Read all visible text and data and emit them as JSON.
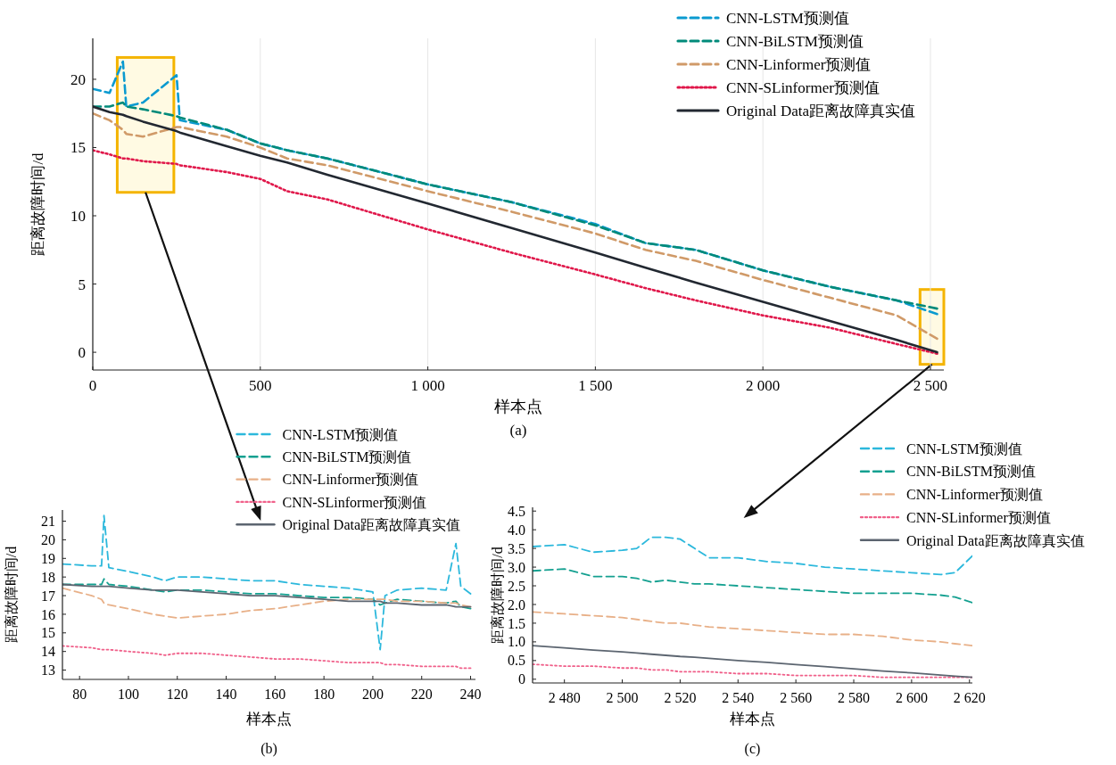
{
  "chart_data": [
    {
      "type": "line",
      "xlabel": "样本点",
      "ylabel": "距离故障时间/d",
      "annotations": [
        "(a)"
      ],
      "xlim": [
        0,
        2540
      ],
      "ylim": [
        -1.3,
        23
      ],
      "xticks": [
        0,
        500,
        {
          "value": 1000,
          "label": "1 000"
        },
        {
          "value": 1500,
          "label": "1 500"
        },
        {
          "value": 2000,
          "label": "2 000"
        },
        {
          "value": 2500,
          "label": "2 500"
        }
      ],
      "yticks": [
        0,
        5,
        10,
        15,
        20
      ],
      "grid": "x",
      "legend": "top right",
      "x": [
        0,
        50,
        90,
        100,
        150,
        250,
        260,
        400,
        500,
        580,
        700,
        1000,
        1250,
        1500,
        1650,
        1800,
        2000,
        2200,
        2400,
        2520
      ],
      "series": [
        {
          "name": "CNN-LSTM预测值",
          "color": "#0a9ad0",
          "line_style": "dashed",
          "values": [
            19.3,
            19,
            21.3,
            18,
            18.3,
            20.3,
            17,
            16.3,
            15.3,
            14.8,
            14.2,
            12.3,
            11,
            9.4,
            8,
            7.5,
            6,
            4.8,
            3.8,
            2.8
          ]
        },
        {
          "name": "CNN-BiLSTM预测值",
          "color": "#008a7a",
          "line_style": "dashed",
          "values": [
            18,
            18,
            18.3,
            18,
            17.8,
            17.3,
            17.2,
            16.3,
            15.3,
            14.8,
            14.2,
            12.3,
            11,
            9.3,
            8,
            7.5,
            6,
            4.8,
            3.8,
            3.2
          ]
        },
        {
          "name": "CNN-Linformer预测值",
          "color": "#d09a68",
          "line_style": "dashed",
          "values": [
            17.5,
            17,
            16.3,
            16,
            15.8,
            16.5,
            16.5,
            15.8,
            15,
            14.2,
            13.7,
            11.8,
            10.3,
            8.7,
            7.5,
            6.7,
            5.3,
            4,
            2.7,
            1
          ]
        },
        {
          "name": "CNN-SLinformer预测值",
          "color": "#e0174a",
          "line_style": "dotted",
          "values": [
            14.8,
            14.5,
            14.2,
            14.2,
            14,
            13.8,
            13.7,
            13.2,
            12.7,
            11.8,
            11.2,
            9,
            7.3,
            5.7,
            4.7,
            3.8,
            2.7,
            1.8,
            0.6,
            -0.1
          ]
        },
        {
          "name": "Original Data距离故障真实值",
          "color": "#222831",
          "line_style": "solid",
          "values": [
            18,
            17.6,
            17.4,
            17.3,
            16.9,
            16.2,
            16.1,
            15.1,
            14.4,
            13.9,
            13,
            10.9,
            9.1,
            7.3,
            6.2,
            5.1,
            3.7,
            2.3,
            0.9,
            0
          ]
        }
      ]
    },
    {
      "type": "line",
      "xlabel": "样本点",
      "ylabel": "距离故障时间/d",
      "annotations": [
        "(b)"
      ],
      "xlim": [
        73,
        242
      ],
      "ylim": [
        12.5,
        21.6
      ],
      "xticks": [
        80,
        100,
        120,
        140,
        160,
        180,
        200,
        220,
        240
      ],
      "yticks": [
        13,
        14,
        15,
        16,
        17,
        18,
        19,
        20,
        21
      ],
      "legend": "top",
      "x": [
        73,
        85,
        89,
        90,
        92,
        100,
        110,
        115,
        120,
        130,
        140,
        150,
        160,
        170,
        180,
        190,
        200,
        203,
        205,
        210,
        220,
        230,
        234,
        236,
        240
      ],
      "series": [
        {
          "name": "CNN-LSTM预测值",
          "color": "#2cb8dc",
          "line_style": "dashed",
          "values": [
            18.7,
            18.6,
            18.6,
            21.3,
            18.5,
            18.3,
            18,
            17.8,
            18,
            18,
            17.9,
            17.8,
            17.8,
            17.6,
            17.5,
            17.4,
            17.2,
            14.1,
            17,
            17.3,
            17.4,
            17.3,
            19.8,
            17.5,
            17.1
          ]
        },
        {
          "name": "CNN-BiLSTM预测值",
          "color": "#14a090",
          "line_style": "dashed",
          "values": [
            17.6,
            17.6,
            17.6,
            17.9,
            17.6,
            17.5,
            17.3,
            17.2,
            17.3,
            17.3,
            17.2,
            17.1,
            17.1,
            17,
            16.9,
            16.9,
            16.8,
            16.5,
            16.6,
            16.8,
            16.7,
            16.6,
            16.7,
            16.4,
            16.3
          ]
        },
        {
          "name": "CNN-Linformer预测值",
          "color": "#e8b088",
          "line_style": "dashed",
          "values": [
            17.4,
            17,
            16.8,
            16.6,
            16.5,
            16.3,
            16,
            15.9,
            15.8,
            15.9,
            16,
            16.2,
            16.3,
            16.5,
            16.7,
            16.8,
            16.8,
            16.8,
            16.8,
            16.7,
            16.7,
            16.6,
            16.6,
            16.5,
            16.4
          ]
        },
        {
          "name": "CNN-SLinformer预测值",
          "color": "#f0608a",
          "line_style": "dotted",
          "values": [
            14.3,
            14.2,
            14.1,
            14.1,
            14.1,
            14,
            13.9,
            13.8,
            13.9,
            13.9,
            13.8,
            13.7,
            13.6,
            13.6,
            13.5,
            13.4,
            13.4,
            13.4,
            13.3,
            13.3,
            13.2,
            13.2,
            13.2,
            13.1,
            13.1
          ]
        },
        {
          "name": "Original Data距离故障真实值",
          "color": "#5c6570",
          "line_style": "solid",
          "values": [
            17.6,
            17.5,
            17.5,
            17.5,
            17.5,
            17.4,
            17.3,
            17.3,
            17.3,
            17.2,
            17.1,
            17,
            17,
            16.9,
            16.8,
            16.7,
            16.7,
            16.7,
            16.6,
            16.6,
            16.5,
            16.5,
            16.4,
            16.4,
            16.4
          ]
        }
      ]
    },
    {
      "type": "line",
      "xlabel": "样本点",
      "ylabel": "距离故障时间/d",
      "annotations": [
        "(c)"
      ],
      "xlim": [
        2469,
        2621
      ],
      "ylim": [
        -0.1,
        4.6
      ],
      "xticks": [
        {
          "value": 2480,
          "label": "2 480"
        },
        {
          "value": 2500,
          "label": "2 500"
        },
        {
          "value": 2520,
          "label": "2 520"
        },
        {
          "value": 2540,
          "label": "2 540"
        },
        {
          "value": 2560,
          "label": "2 560"
        },
        {
          "value": 2580,
          "label": "2 580"
        },
        {
          "value": 2600,
          "label": "2 600"
        },
        {
          "value": 2620,
          "label": "2 620"
        }
      ],
      "yticks": [
        0,
        0.5,
        {
          "value": 1,
          "label": "1.0"
        },
        1.5,
        {
          "value": 2,
          "label": "2.0"
        },
        2.5,
        {
          "value": 3,
          "label": "3.0"
        },
        3.5,
        {
          "value": 4,
          "label": "4.0"
        },
        4.5
      ],
      "legend": "top right",
      "x": [
        2469,
        2480,
        2490,
        2500,
        2505,
        2510,
        2515,
        2520,
        2525,
        2530,
        2540,
        2550,
        2560,
        2570,
        2580,
        2590,
        2600,
        2610,
        2615,
        2621
      ],
      "series": [
        {
          "name": "CNN-LSTM预测值",
          "color": "#2cb8dc",
          "line_style": "dashed",
          "values": [
            3.55,
            3.6,
            3.4,
            3.45,
            3.5,
            3.8,
            3.8,
            3.75,
            3.5,
            3.25,
            3.25,
            3.15,
            3.1,
            3,
            2.95,
            2.9,
            2.85,
            2.8,
            2.85,
            3.3
          ]
        },
        {
          "name": "CNN-BiLSTM预测值",
          "color": "#14a090",
          "line_style": "dashed",
          "values": [
            2.9,
            2.95,
            2.75,
            2.75,
            2.7,
            2.6,
            2.65,
            2.6,
            2.55,
            2.55,
            2.5,
            2.45,
            2.4,
            2.35,
            2.3,
            2.3,
            2.3,
            2.25,
            2.2,
            2.05
          ]
        },
        {
          "name": "CNN-Linformer预测值",
          "color": "#e8b088",
          "line_style": "dashed",
          "values": [
            1.8,
            1.75,
            1.7,
            1.65,
            1.6,
            1.55,
            1.5,
            1.5,
            1.45,
            1.4,
            1.35,
            1.3,
            1.25,
            1.2,
            1.2,
            1.15,
            1.05,
            1,
            0.95,
            0.9
          ]
        },
        {
          "name": "CNN-SLinformer预测值",
          "color": "#f0608a",
          "line_style": "dotted",
          "values": [
            0.4,
            0.35,
            0.35,
            0.3,
            0.3,
            0.25,
            0.25,
            0.2,
            0.2,
            0.2,
            0.15,
            0.15,
            0.1,
            0.1,
            0.1,
            0.05,
            0.05,
            0.05,
            0.05,
            0.05
          ]
        },
        {
          "name": "Original Data距离故障真实值",
          "color": "#5c6570",
          "line_style": "solid",
          "values": [
            0.9,
            0.84,
            0.78,
            0.73,
            0.7,
            0.67,
            0.64,
            0.61,
            0.59,
            0.56,
            0.5,
            0.45,
            0.39,
            0.34,
            0.28,
            0.22,
            0.17,
            0.11,
            0.08,
            0.05
          ]
        }
      ]
    }
  ]
}
